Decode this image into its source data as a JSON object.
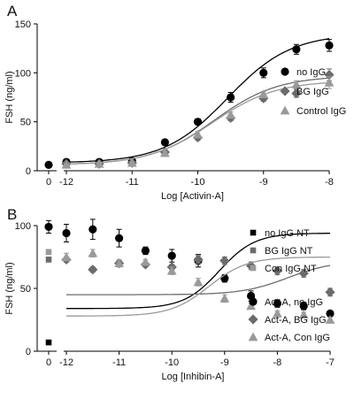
{
  "chart_data": [
    {
      "panel_label": "A",
      "type": "scatter",
      "xlabel": "Log [Activin-A]",
      "ylabel": "FSH (ng/ml)",
      "xlim": [
        -12,
        -8
      ],
      "ylim": [
        0,
        150
      ],
      "xticks": [
        "0",
        "-12",
        "-11",
        "-10",
        "-9",
        "-8"
      ],
      "yticks": [
        0,
        50,
        100,
        150
      ],
      "grid": false,
      "legend": "right",
      "series": [
        {
          "name": "no IgG",
          "marker": "circle",
          "color": "#000000",
          "zero_dose": {
            "y": 6,
            "err": 1
          },
          "x": [
            -12,
            -11.5,
            -11,
            -10.5,
            -10,
            -9.5,
            -9,
            -8.5,
            -8
          ],
          "y": [
            9,
            9,
            10,
            29,
            50,
            75,
            100,
            124,
            128
          ],
          "err": [
            1,
            1,
            1,
            2,
            3,
            5,
            5,
            5,
            6
          ],
          "curve": {
            "bottom": 8,
            "top": 140,
            "ec50": -9.55,
            "hill": 0.9
          }
        },
        {
          "name": "BG IgG",
          "marker": "diamond",
          "color": "#6b6b6b",
          "zero_dose": null,
          "x": [
            -12,
            -11.5,
            -11,
            -10.5,
            -10,
            -9.5,
            -9,
            -8.5,
            -8
          ],
          "y": [
            7,
            7,
            8,
            19,
            34,
            54,
            74,
            79,
            98
          ],
          "err": [
            1,
            1,
            1,
            2,
            3,
            3,
            3,
            4,
            6
          ],
          "curve": {
            "bottom": 6,
            "top": 97,
            "ec50": -9.75,
            "hill": 0.9
          }
        },
        {
          "name": "Control IgG",
          "marker": "triangle",
          "color": "#9a9a9a",
          "zero_dose": null,
          "x": [
            -12,
            -11.5,
            -11,
            -10.5,
            -10,
            -9.5,
            -9,
            -8.5,
            -8
          ],
          "y": [
            6,
            7,
            8,
            18,
            37,
            57,
            78,
            88,
            90
          ],
          "err": [
            1,
            1,
            1,
            2,
            3,
            3,
            3,
            4,
            6
          ],
          "curve": {
            "bottom": 6,
            "top": 92,
            "ec50": -9.78,
            "hill": 0.9
          }
        }
      ]
    },
    {
      "panel_label": "B",
      "type": "scatter",
      "xlabel": "Log [Inhibin-A]",
      "ylabel": "FSH (ng/ml)",
      "xlim": [
        -12,
        -7
      ],
      "ylim": [
        0,
        100
      ],
      "xticks": [
        "0",
        "-12",
        "-11",
        "-10",
        "-9",
        "-8",
        "-7"
      ],
      "yticks": [
        0,
        50,
        100
      ],
      "grid": false,
      "legend": "right",
      "series": [
        {
          "name": "no IgG NT",
          "marker": "square",
          "color": "#000000",
          "zero_dose": {
            "y": 7,
            "err": 0
          }
        },
        {
          "name": "BG IgG NT",
          "marker": "square",
          "color": "#6b6b6b",
          "zero_dose": {
            "y": 73,
            "err": 2
          }
        },
        {
          "name": "Con IgG NT",
          "marker": "square",
          "color": "#9a9a9a",
          "zero_dose": {
            "y": 79,
            "err": 2
          }
        },
        {
          "name": "Act-A, no IgG",
          "marker": "circle",
          "color": "#000000",
          "zero_dose": {
            "y": 99,
            "err": 5
          },
          "x": [
            -12,
            -11.5,
            -11,
            -10.5,
            -10,
            -9.5,
            -9,
            -8.5,
            -8,
            -7.5,
            -7
          ],
          "y": [
            94,
            97,
            90,
            80,
            76,
            72,
            58,
            44,
            38,
            36,
            30
          ],
          "err": [
            7,
            8,
            7,
            3,
            5,
            5,
            3,
            4,
            3,
            3,
            2
          ],
          "curve": {
            "bottom": 34,
            "top": 94,
            "ec50": -9.1,
            "hill": 1.3
          }
        },
        {
          "name": "Act-A, BG IgG",
          "marker": "diamond",
          "color": "#6b6b6b",
          "zero_dose": null,
          "x": [
            -12,
            -11.5,
            -11,
            -10.5,
            -10,
            -9.5,
            -9,
            -8.5,
            -8,
            -7.5,
            -7
          ],
          "y": [
            73,
            65,
            70,
            69,
            67,
            73,
            72,
            68,
            64,
            62,
            47
          ],
          "err": [
            2,
            2,
            2,
            2,
            2,
            3,
            3,
            3,
            3,
            3,
            3
          ],
          "curve": {
            "bottom": 45,
            "top": 72,
            "ec50": -7.8,
            "hill": 1.0
          }
        },
        {
          "name": "Act-A, Con IgG",
          "marker": "triangle",
          "color": "#9a9a9a",
          "zero_dose": null,
          "x": [
            -12,
            -11.5,
            -11,
            -10.5,
            -10,
            -9.5,
            -9,
            -8.5,
            -8,
            -7.5,
            -7
          ],
          "y": [
            75,
            78,
            70,
            71,
            64,
            55,
            42,
            36,
            30,
            29,
            25
          ],
          "err": [
            3,
            3,
            3,
            2,
            3,
            3,
            3,
            2,
            2,
            2,
            2
          ],
          "curve": {
            "bottom": 28,
            "top": 75,
            "ec50": -9.3,
            "hill": 1.2
          }
        }
      ]
    }
  ]
}
